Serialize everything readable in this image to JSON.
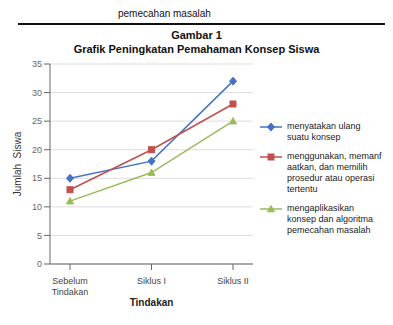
{
  "chart_data": {
    "type": "line",
    "title": "Grafik Peningkatan Pemahaman Konsep Siswa",
    "annotations": [
      "pemecahan masalah",
      "Gambar 1"
    ],
    "xlabel": "Tindakan",
    "ylabel": "Jumlah  Siswa",
    "categories": [
      "Sebelum\nTindakan",
      "Siklus I",
      "Siklus II"
    ],
    "series": [
      {
        "name": "menyatakan ulang\nsuatu konsep",
        "color": "#4472C4",
        "marker": "diamond",
        "values": [
          15,
          18,
          32
        ]
      },
      {
        "name": "menggunakan, memanf\naatkan, dan memilih\nprosedur atau operasi\ntertentu",
        "color": "#C0504D",
        "marker": "square",
        "values": [
          13,
          20,
          28
        ]
      },
      {
        "name": "mengaplikasikan\nkonsep dan algoritma\npemecahan masalah",
        "color": "#9BBB59",
        "marker": "triangle",
        "values": [
          11,
          16,
          25
        ]
      }
    ],
    "ylim": [
      0,
      35
    ],
    "yticks": [
      0,
      5,
      10,
      15,
      20,
      25,
      30,
      35
    ],
    "grid": true,
    "legend": "right"
  }
}
